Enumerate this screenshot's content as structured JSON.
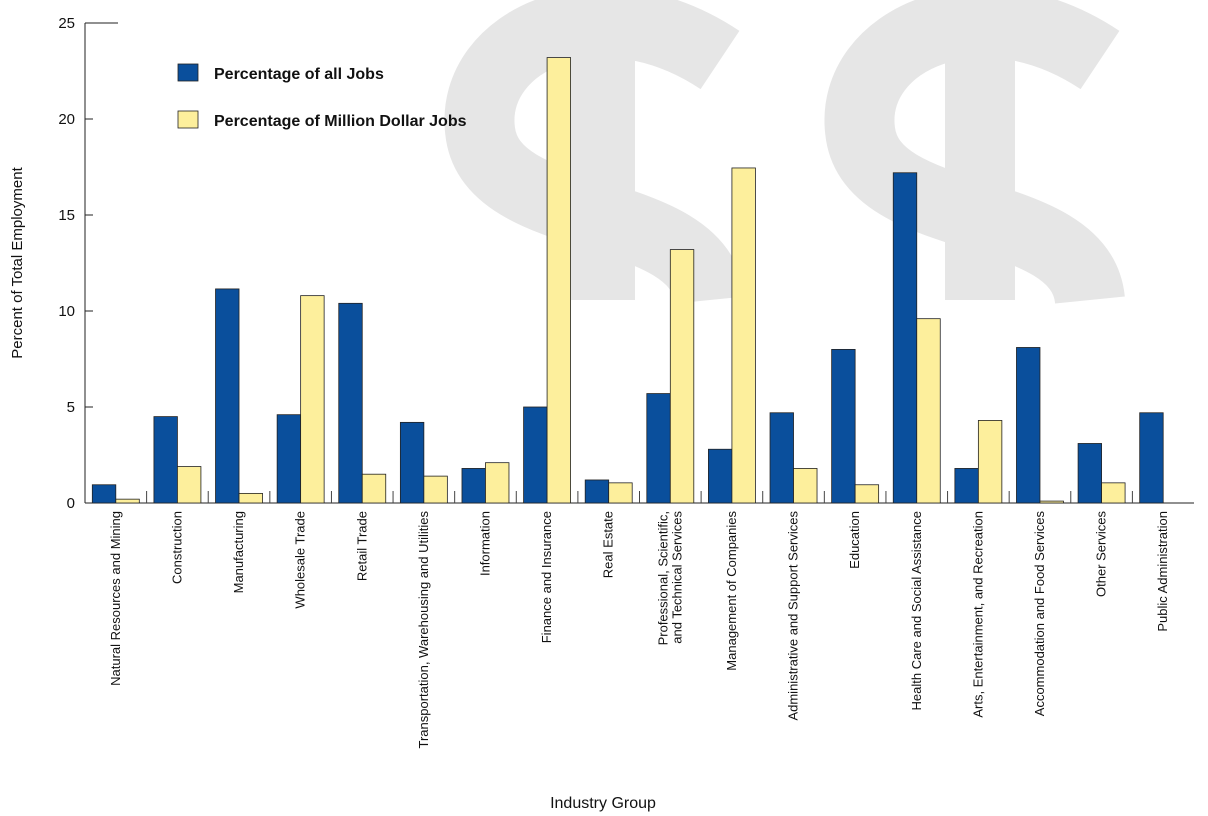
{
  "chart_data": {
    "type": "bar",
    "y_label": "Percent of Total Employment",
    "x_label": "Industry Group",
    "categories": [
      "Natural Resources and Mining",
      "Construction",
      "Manufacturing",
      "Wholesale Trade",
      "Retail Trade",
      "Transportation, Warehousing and Utilities",
      "Information",
      "Finance and Insurance",
      "Real Estate",
      "Professional, Scientific,\nand Technical Services",
      "Management of Companies",
      "Administrative and Support Services",
      "Education",
      "Health Care and Social Assistance",
      "Arts, Entertainment, and Recreation",
      "Accommodation and Food Services",
      "Other Services",
      "Public Administration"
    ],
    "series": [
      {
        "name": "Percentage of all Jobs",
        "color": "#0a4f9c",
        "values": [
          0.95,
          4.5,
          11.15,
          4.6,
          10.4,
          4.2,
          1.8,
          5.0,
          1.2,
          5.7,
          2.8,
          4.7,
          8.0,
          17.2,
          1.8,
          8.1,
          3.1,
          4.7
        ]
      },
      {
        "name": "Percentage of Million Dollar Jobs",
        "color": "#fdef9c",
        "values": [
          0.2,
          1.9,
          0.5,
          10.8,
          1.5,
          1.4,
          2.1,
          23.2,
          1.05,
          13.2,
          17.45,
          1.8,
          0.95,
          9.6,
          4.3,
          0.1,
          1.05,
          null
        ]
      }
    ],
    "ylim": [
      0,
      25
    ],
    "yticks": [
      0,
      5,
      10,
      15,
      20,
      25
    ],
    "legend": "upper left"
  }
}
